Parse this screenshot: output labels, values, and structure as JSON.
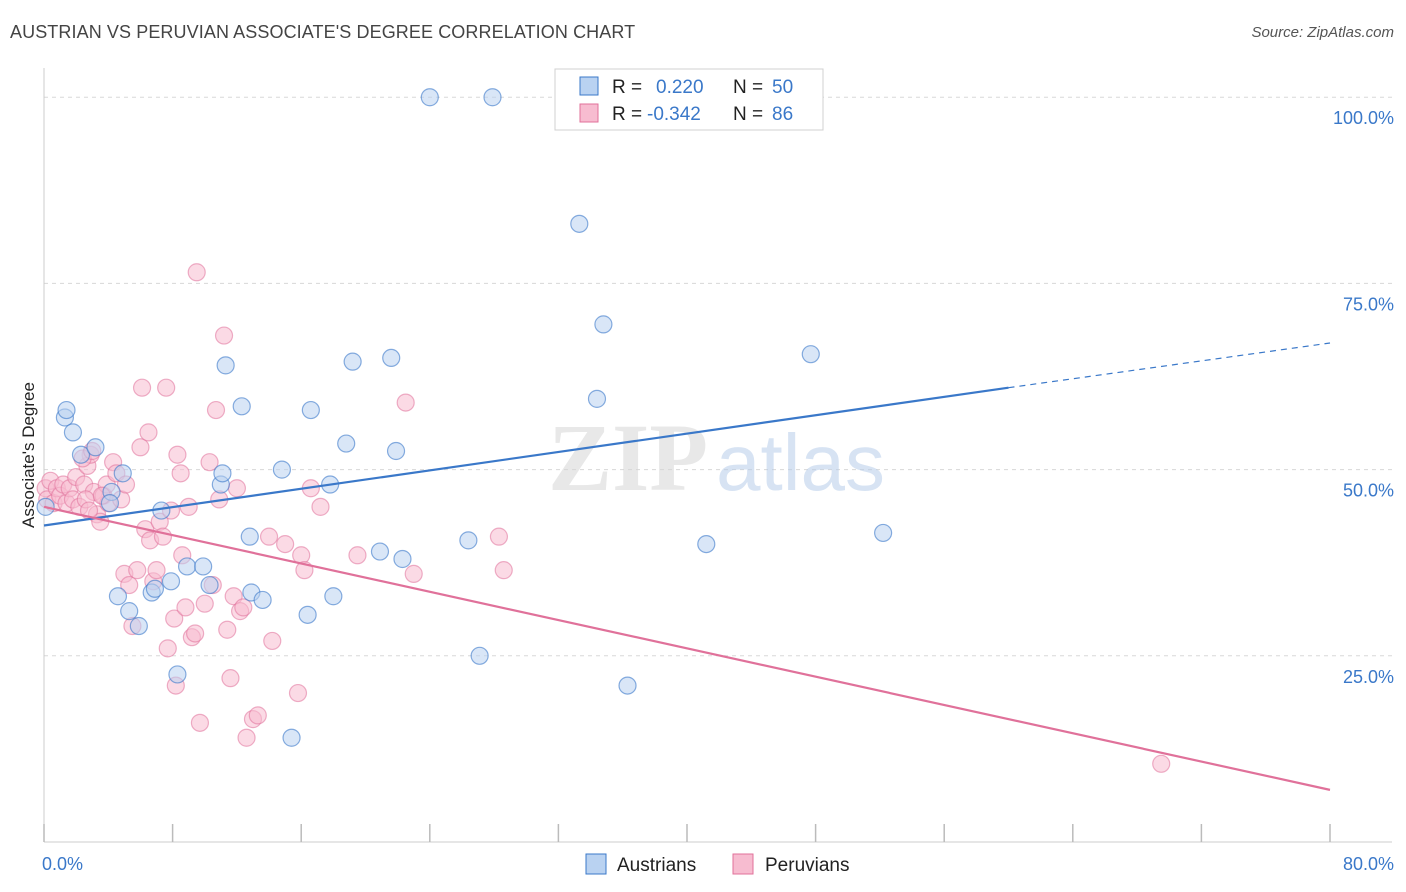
{
  "header": {
    "title": "AUSTRIAN VS PERUVIAN ASSOCIATE'S DEGREE CORRELATION CHART",
    "source": "Source: ZipAtlas.com"
  },
  "watermark": {
    "zip": "ZIP",
    "atlas": "atlas"
  },
  "colors": {
    "blue": "#3a78c9",
    "blue_fill": "#b9d2f1",
    "pink": "#e0719a",
    "pink_fill": "#f7bcd0",
    "grid": "#d8d8d8"
  },
  "legend": {
    "r_label": "R =",
    "n_label": "N =",
    "items": [
      {
        "series": "Austrians",
        "r": "0.220",
        "n": "50"
      },
      {
        "series": "Peruvians",
        "r": "-0.342",
        "n": "86"
      }
    ]
  },
  "chart_data": {
    "type": "scatter",
    "title": "AUSTRIAN VS PERUVIAN ASSOCIATE'S DEGREE CORRELATION CHART",
    "xlabel": "",
    "ylabel": "Associate's Degree",
    "xlim": [
      0,
      80
    ],
    "ylim": [
      0,
      105
    ],
    "x_tick_labels": [
      "0.0%",
      "80.0%"
    ],
    "y_ticks": [
      25,
      50,
      75,
      100
    ],
    "y_tick_labels": [
      "25.0%",
      "50.0%",
      "75.0%",
      "100.0%"
    ],
    "grid": true,
    "series": [
      {
        "name": "Austrians",
        "color": "#3a78c9",
        "r": 0.22,
        "n": 50,
        "trend": {
          "x0": 0,
          "y0": 42.5,
          "x1": 60,
          "y1": 61.0,
          "dashed_to_x": 80,
          "dashed_to_y": 67.0
        },
        "points": [
          [
            0.1,
            45.0
          ],
          [
            1.3,
            57.0
          ],
          [
            1.4,
            58.0
          ],
          [
            1.8,
            55.0
          ],
          [
            2.3,
            52.0
          ],
          [
            3.2,
            53.0
          ],
          [
            4.2,
            47.0
          ],
          [
            4.1,
            45.5
          ],
          [
            4.9,
            49.5
          ],
          [
            4.6,
            33.0
          ],
          [
            5.3,
            31.0
          ],
          [
            5.9,
            29.0
          ],
          [
            6.7,
            33.5
          ],
          [
            6.9,
            34.0
          ],
          [
            7.3,
            44.5
          ],
          [
            7.9,
            35.0
          ],
          [
            8.3,
            22.5
          ],
          [
            8.9,
            37.0
          ],
          [
            9.9,
            37.0
          ],
          [
            10.3,
            34.5
          ],
          [
            11.0,
            48.0
          ],
          [
            11.1,
            49.5
          ],
          [
            11.3,
            64.0
          ],
          [
            12.3,
            58.5
          ],
          [
            12.8,
            41.0
          ],
          [
            12.9,
            33.5
          ],
          [
            13.6,
            32.5
          ],
          [
            14.8,
            50.0
          ],
          [
            15.4,
            14.0
          ],
          [
            16.4,
            30.5
          ],
          [
            16.6,
            58.0
          ],
          [
            17.8,
            48.0
          ],
          [
            18.0,
            33.0
          ],
          [
            18.8,
            53.5
          ],
          [
            19.2,
            64.5
          ],
          [
            20.9,
            39.0
          ],
          [
            21.6,
            65.0
          ],
          [
            21.9,
            52.5
          ],
          [
            22.3,
            38.0
          ],
          [
            24.0,
            100.0
          ],
          [
            26.4,
            40.5
          ],
          [
            27.1,
            25.0
          ],
          [
            27.9,
            100.0
          ],
          [
            33.3,
            83.0
          ],
          [
            34.4,
            59.5
          ],
          [
            34.8,
            69.5
          ],
          [
            36.3,
            21.0
          ],
          [
            41.2,
            40.0
          ],
          [
            47.7,
            65.5
          ],
          [
            52.2,
            41.5
          ]
        ]
      },
      {
        "name": "Peruvians",
        "color": "#e0719a",
        "r": -0.342,
        "n": 86,
        "trend": {
          "x0": 0,
          "y0": 45.0,
          "x1": 80,
          "y1": 7.0
        },
        "points": [
          [
            0.1,
            47.5
          ],
          [
            0.2,
            46.0
          ],
          [
            0.4,
            48.5
          ],
          [
            0.6,
            45.5
          ],
          [
            0.8,
            47.5
          ],
          [
            1.0,
            46.5
          ],
          [
            1.2,
            48.0
          ],
          [
            1.4,
            45.5
          ],
          [
            1.6,
            47.5
          ],
          [
            1.8,
            46.0
          ],
          [
            2.0,
            49.0
          ],
          [
            2.2,
            45.0
          ],
          [
            2.5,
            48.0
          ],
          [
            2.7,
            50.5
          ],
          [
            2.9,
            52.0
          ],
          [
            3.1,
            47.0
          ],
          [
            3.3,
            44.0
          ],
          [
            3.5,
            43.0
          ],
          [
            3.7,
            46.5
          ],
          [
            3.9,
            48.0
          ],
          [
            4.0,
            45.5
          ],
          [
            2.6,
            46.0
          ],
          [
            2.4,
            51.5
          ],
          [
            3.0,
            52.5
          ],
          [
            2.8,
            44.5
          ],
          [
            3.6,
            46.5
          ],
          [
            4.3,
            51.0
          ],
          [
            4.5,
            49.5
          ],
          [
            4.8,
            46.0
          ],
          [
            5.0,
            36.0
          ],
          [
            5.1,
            48.0
          ],
          [
            5.3,
            34.5
          ],
          [
            5.5,
            29.0
          ],
          [
            5.8,
            36.5
          ],
          [
            6.0,
            53.0
          ],
          [
            6.1,
            61.0
          ],
          [
            6.3,
            42.0
          ],
          [
            6.5,
            55.0
          ],
          [
            6.6,
            40.5
          ],
          [
            6.8,
            35.0
          ],
          [
            7.0,
            36.5
          ],
          [
            7.2,
            43.0
          ],
          [
            7.4,
            41.0
          ],
          [
            7.6,
            61.0
          ],
          [
            7.7,
            26.0
          ],
          [
            7.9,
            44.5
          ],
          [
            8.1,
            30.0
          ],
          [
            8.3,
            52.0
          ],
          [
            8.5,
            49.5
          ],
          [
            8.6,
            38.5
          ],
          [
            8.8,
            31.5
          ],
          [
            9.0,
            45.0
          ],
          [
            9.2,
            27.5
          ],
          [
            9.4,
            28.0
          ],
          [
            9.5,
            76.5
          ],
          [
            9.7,
            16.0
          ],
          [
            10.0,
            32.0
          ],
          [
            10.3,
            51.0
          ],
          [
            10.5,
            34.5
          ],
          [
            10.7,
            58.0
          ],
          [
            10.9,
            46.0
          ],
          [
            11.2,
            68.0
          ],
          [
            11.4,
            28.5
          ],
          [
            11.6,
            22.0
          ],
          [
            11.8,
            33.0
          ],
          [
            12.0,
            47.5
          ],
          [
            12.2,
            31.0
          ],
          [
            12.4,
            31.5
          ],
          [
            12.6,
            14.0
          ],
          [
            13.0,
            16.5
          ],
          [
            13.3,
            17.0
          ],
          [
            14.0,
            41.0
          ],
          [
            14.2,
            27.0
          ],
          [
            15.0,
            40.0
          ],
          [
            15.8,
            20.0
          ],
          [
            16.0,
            38.5
          ],
          [
            16.2,
            36.5
          ],
          [
            16.6,
            47.5
          ],
          [
            17.2,
            45.0
          ],
          [
            19.5,
            38.5
          ],
          [
            22.5,
            59.0
          ],
          [
            23.0,
            36.0
          ],
          [
            28.3,
            41.0
          ],
          [
            28.6,
            36.5
          ],
          [
            69.5,
            10.5
          ],
          [
            8.2,
            21.0
          ]
        ]
      }
    ]
  }
}
